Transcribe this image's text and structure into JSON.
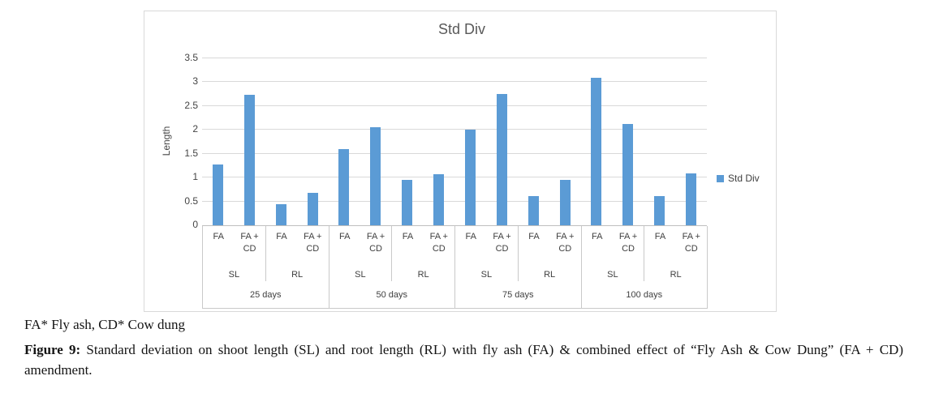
{
  "chart": {
    "title": "Std Div",
    "legend": {
      "label": "Std Div",
      "swatch_color": "#5b9bd5"
    },
    "y_axis": {
      "title": "Length",
      "ticks": [
        "0",
        "0.5",
        "1",
        "1.5",
        "2",
        "2.5",
        "3",
        "3.5"
      ]
    }
  },
  "chart_data": {
    "type": "bar",
    "title": "Std Div",
    "xlabel": "",
    "ylabel": "Length",
    "ylim": [
      0,
      3.5
    ],
    "ytick_step": 0.5,
    "grid": true,
    "legend_position": "right",
    "series_name": "Std Div",
    "bar_color": "#5b9bd5",
    "groups": [
      {
        "label": "25 days",
        "subgroups": [
          {
            "label": "SL",
            "bars": [
              {
                "label": "FA",
                "label_lines": [
                  "FA"
                ],
                "value": 1.27
              },
              {
                "label": "FA + CD",
                "label_lines": [
                  "FA +",
                  "CD"
                ],
                "value": 2.73
              }
            ]
          },
          {
            "label": "RL",
            "bars": [
              {
                "label": "FA",
                "label_lines": [
                  "FA"
                ],
                "value": 0.45
              },
              {
                "label": "FA + CD",
                "label_lines": [
                  "FA +",
                  "CD"
                ],
                "value": 0.68
              }
            ]
          }
        ]
      },
      {
        "label": "50 days",
        "subgroups": [
          {
            "label": "SL",
            "bars": [
              {
                "label": "FA",
                "label_lines": [
                  "FA"
                ],
                "value": 1.59
              },
              {
                "label": "FA + CD",
                "label_lines": [
                  "FA +",
                  "CD"
                ],
                "value": 2.06
              }
            ]
          },
          {
            "label": "RL",
            "bars": [
              {
                "label": "FA",
                "label_lines": [
                  "FA"
                ],
                "value": 0.95
              },
              {
                "label": "FA + CD",
                "label_lines": [
                  "FA +",
                  "CD"
                ],
                "value": 1.07
              }
            ]
          }
        ]
      },
      {
        "label": "75 days",
        "subgroups": [
          {
            "label": "SL",
            "bars": [
              {
                "label": "FA",
                "label_lines": [
                  "FA"
                ],
                "value": 2.01
              },
              {
                "label": "FA + CD",
                "label_lines": [
                  "FA +",
                  "CD"
                ],
                "value": 2.76
              }
            ]
          },
          {
            "label": "RL",
            "bars": [
              {
                "label": "FA",
                "label_lines": [
                  "FA"
                ],
                "value": 0.61
              },
              {
                "label": "FA + CD",
                "label_lines": [
                  "FA +",
                  "CD"
                ],
                "value": 0.95
              }
            ]
          }
        ]
      },
      {
        "label": "100 days",
        "subgroups": [
          {
            "label": "SL",
            "bars": [
              {
                "label": "FA",
                "label_lines": [
                  "FA"
                ],
                "value": 3.09
              },
              {
                "label": "FA + CD",
                "label_lines": [
                  "FA +",
                  "CD"
                ],
                "value": 2.12
              }
            ]
          },
          {
            "label": "RL",
            "bars": [
              {
                "label": "FA",
                "label_lines": [
                  "FA"
                ],
                "value": 0.62
              },
              {
                "label": "FA + CD",
                "label_lines": [
                  "FA +",
                  "CD"
                ],
                "value": 1.08
              }
            ]
          }
        ]
      }
    ]
  },
  "caption": {
    "note": "FA* Fly ash, CD* Cow dung",
    "figure_label": "Figure 9:",
    "figure_text": " Standard deviation on shoot length (SL) and root length (RL) with fly ash (FA) & combined effect of “Fly Ash & Cow Dung” (FA + CD) amendment."
  }
}
